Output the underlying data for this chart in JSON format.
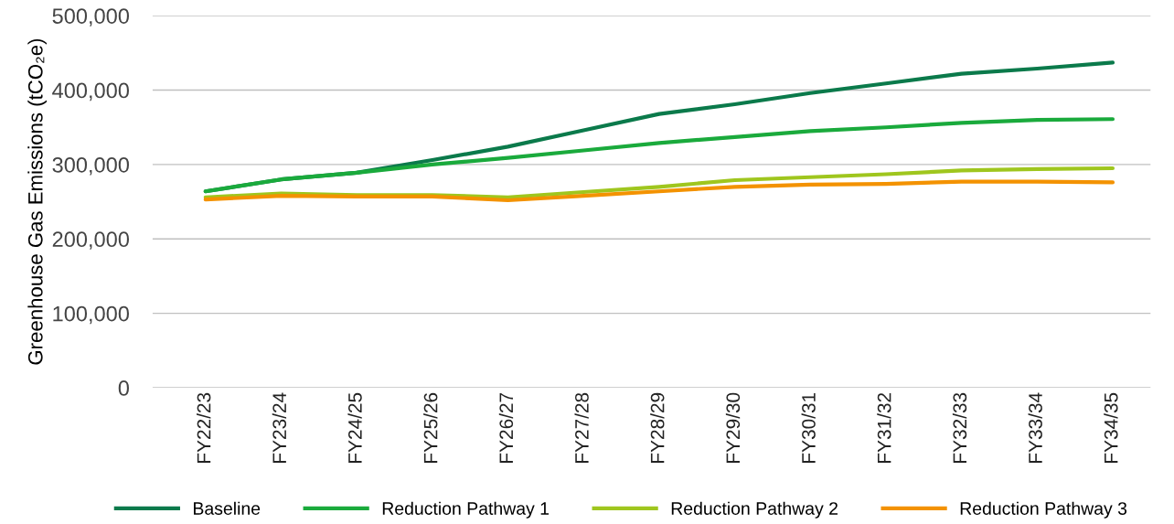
{
  "chart_data": {
    "type": "line",
    "ylabel": "Greenhouse Gas Emissions (tCO₂e)",
    "categories": [
      "FY22/23",
      "FY23/24",
      "FY24/25",
      "FY25/26",
      "FY26/27",
      "FY27/28",
      "FY28/29",
      "FY29/30",
      "FY30/31",
      "FY31/32",
      "FY32/33",
      "FY33/34",
      "FY34/35"
    ],
    "series": [
      {
        "name": "Baseline",
        "color": "#0b7a4b",
        "values": [
          264000,
          280000,
          289000,
          306000,
          324000,
          346000,
          368000,
          381000,
          396000,
          409000,
          422000,
          429000,
          437000
        ]
      },
      {
        "name": "Reduction Pathway 1",
        "color": "#1aaa3c",
        "values": [
          264000,
          280000,
          289000,
          300000,
          309000,
          319000,
          329000,
          337000,
          345000,
          350000,
          356000,
          360000,
          361000
        ]
      },
      {
        "name": "Reduction Pathway 2",
        "color": "#9fc61e",
        "values": [
          256000,
          261000,
          259000,
          259000,
          256000,
          263000,
          270000,
          279000,
          283000,
          287000,
          292000,
          294000,
          295000
        ]
      },
      {
        "name": "Reduction Pathway 3",
        "color": "#f39200",
        "values": [
          253000,
          258000,
          257000,
          257000,
          252000,
          258000,
          264000,
          270000,
          273000,
          274000,
          277000,
          277000,
          276000
        ]
      }
    ],
    "ylim": [
      0,
      500000
    ],
    "yticks": [
      {
        "value": 0,
        "label": "0"
      },
      {
        "value": 100000,
        "label": "100,000"
      },
      {
        "value": 200000,
        "label": "200,000"
      },
      {
        "value": 300000,
        "label": "300,000"
      },
      {
        "value": 400000,
        "label": "400,000"
      },
      {
        "value": 500000,
        "label": "500,000"
      }
    ],
    "grid": "y",
    "legend": "bottom",
    "marker": "none",
    "line_style": "solid"
  }
}
